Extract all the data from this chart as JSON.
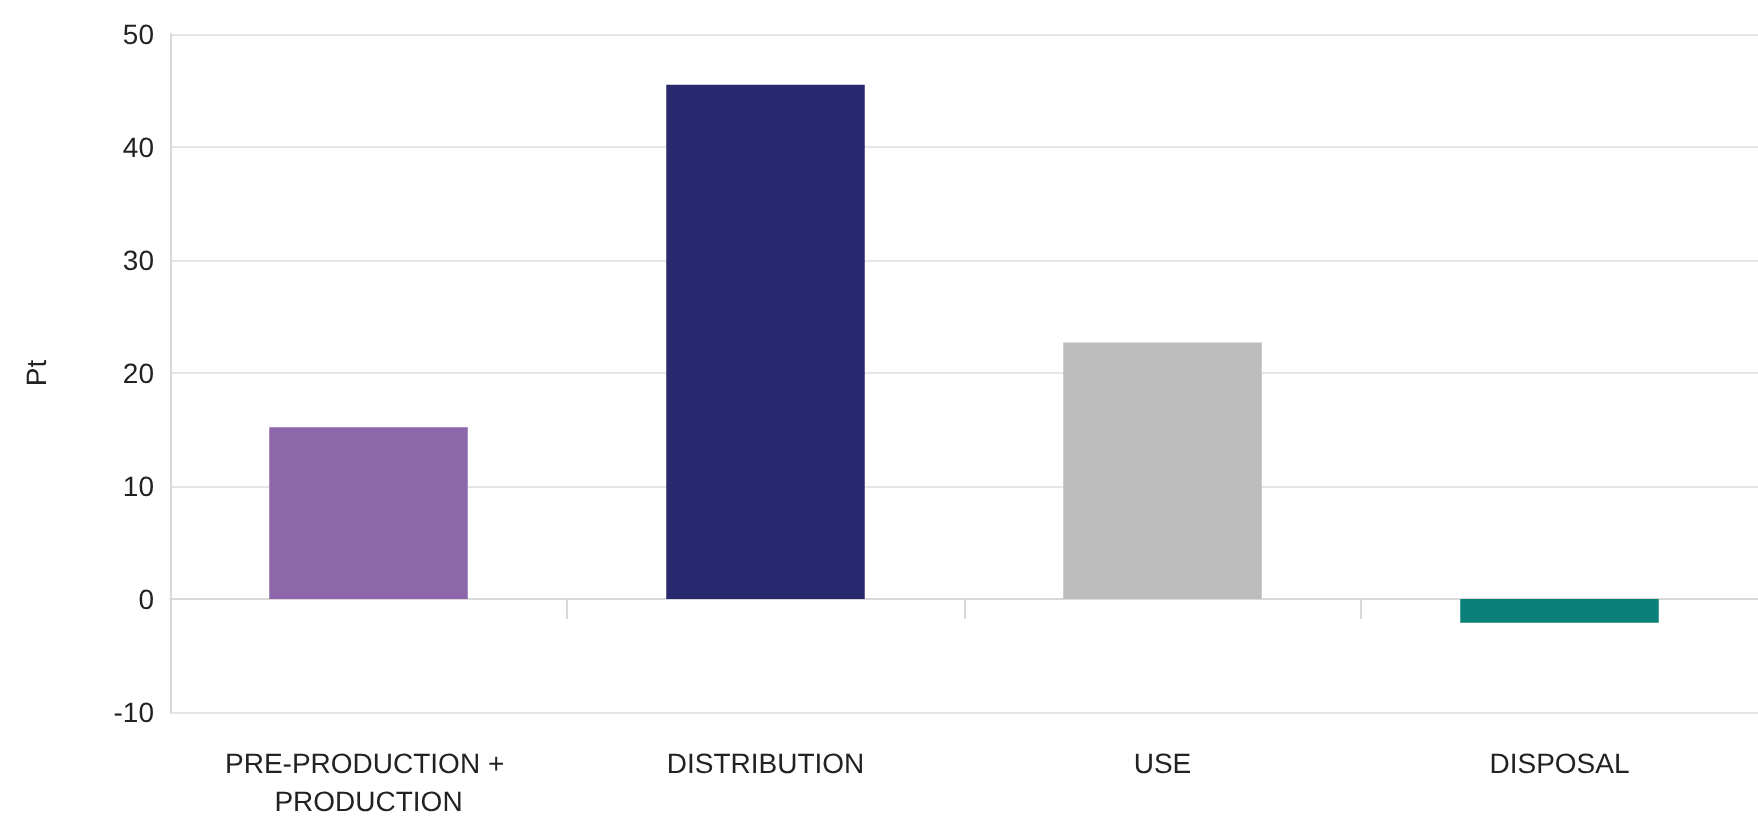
{
  "chart_data": {
    "type": "bar",
    "ylabel": "Pt",
    "categories": [
      "PRE-PRODUCTION + PRODUCTION",
      "DISTRIBUTION",
      "USE",
      "DISPOSAL"
    ],
    "values": [
      15.2,
      45.5,
      22.7,
      -2.1
    ],
    "colors": [
      "#8e67ab",
      "#28286f",
      "#bdbdbd",
      "#0b8078"
    ],
    "ylim": [
      -10,
      50
    ],
    "yticks": [
      -10,
      0,
      10,
      20,
      30,
      40,
      50
    ],
    "grid": "y"
  }
}
